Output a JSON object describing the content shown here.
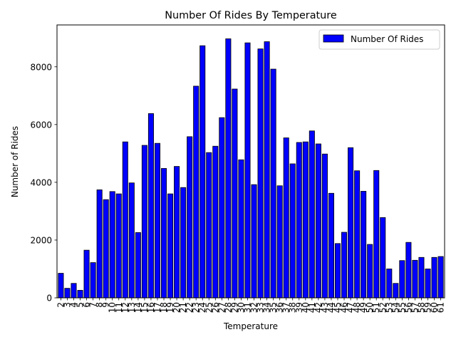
{
  "chart_data": {
    "type": "bar",
    "title": "Number Of Rides By Temperature",
    "xlabel": "Temperature",
    "ylabel": "Number of Rides",
    "ylim": [
      0,
      9450
    ],
    "yticks": [
      0,
      2000,
      4000,
      6000,
      8000
    ],
    "grid": false,
    "legend_position": "top-right",
    "categories": [
      "2",
      "3",
      "4",
      "5",
      "6",
      "7",
      "8",
      "9",
      "10",
      "11",
      "12",
      "13",
      "14",
      "15",
      "16",
      "17",
      "18",
      "19",
      "20",
      "21",
      "22",
      "23",
      "24",
      "25",
      "26",
      "27",
      "28",
      "29",
      "30",
      "31",
      "32",
      "33",
      "34",
      "35",
      "36",
      "37",
      "38",
      "39",
      "40",
      "41",
      "42",
      "43",
      "44",
      "45",
      "46",
      "47",
      "48",
      "49",
      "50",
      "51",
      "52",
      "53",
      "54",
      "55",
      "56",
      "57",
      "58",
      "59",
      "60",
      "61"
    ],
    "series": [
      {
        "name": "Number Of Rides",
        "color": "#0000ff",
        "edge_color": "#000000",
        "values": [
          850,
          330,
          500,
          260,
          1650,
          1220,
          3740,
          3400,
          3680,
          3600,
          5400,
          3980,
          2260,
          5280,
          6380,
          5350,
          4480,
          3600,
          4550,
          3820,
          5580,
          7330,
          8730,
          5030,
          5250,
          6240,
          8970,
          7230,
          4780,
          8830,
          3920,
          8620,
          8870,
          7920,
          3880,
          5540,
          4640,
          5380,
          5400,
          5780,
          5330,
          4980,
          3620,
          1880,
          2270,
          5200,
          4400,
          3690,
          1850,
          4410,
          2780,
          1000,
          500,
          1290,
          1920,
          1300,
          1400,
          1000,
          1400,
          1430
        ]
      }
    ]
  }
}
